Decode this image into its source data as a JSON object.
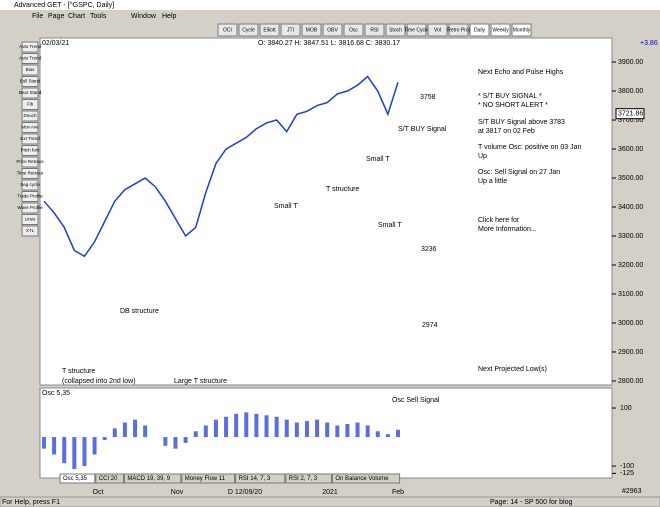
{
  "window": {
    "title": "Advanced GET - [^GSPC, Daily]",
    "menu": [
      "File",
      "Page",
      "Chart",
      "Tools",
      "Window",
      "Help"
    ],
    "toolbar": [
      "OCI",
      "Cycle",
      "Elliott",
      "JTI",
      "MOB",
      "OBV",
      "Osc",
      "RSI",
      "Stoch",
      "Time Cycle",
      "Vol",
      "Retro Proj",
      "Daily",
      "Weekly",
      "Monthly"
    ],
    "side_tools": [
      "Auto Trend",
      "Auto Trend",
      "Bias",
      "Bull Stand",
      "Bear Stand",
      "Fib",
      "Dnuch",
      "Mov Ave",
      "Ext Trend",
      "Pitch fork",
      "Price Retrace",
      "Time Retrace",
      "Seg cycle",
      "Trade Profile",
      "Wave Profile",
      "Lines",
      "XTL"
    ]
  },
  "header": {
    "date": "02/03/21",
    "ohlc": "O: 3840.27  H: 3847.51  L: 3816.68  C: 3830.17",
    "change": "+3.86"
  },
  "price_axis": {
    "ylim": [
      2786,
      3976
    ],
    "yticks": [
      {
        "value": 2800,
        "label": "2800.00"
      },
      {
        "value": 2900,
        "label": "2900.00"
      },
      {
        "value": 3000,
        "label": "3000.00"
      },
      {
        "value": 3100,
        "label": "3100.00"
      },
      {
        "value": 3200,
        "label": "3200.00"
      },
      {
        "value": 3300,
        "label": "3300.00"
      },
      {
        "value": 3400,
        "label": "3400.00"
      },
      {
        "value": 3500,
        "label": "3500.00"
      },
      {
        "value": 3600,
        "label": "3600.00"
      },
      {
        "value": 3700,
        "label": "3700.00"
      },
      {
        "value": 3800,
        "label": "3800.00"
      },
      {
        "value": 3900,
        "label": "3900.00"
      }
    ],
    "last": {
      "value": 3721.86,
      "label": "3721.86"
    }
  },
  "closes": [
    3420,
    3380,
    3330,
    3250,
    3230,
    3280,
    3350,
    3420,
    3460,
    3480,
    3500,
    3470,
    3420,
    3360,
    3300,
    3330,
    3450,
    3550,
    3600,
    3620,
    3640,
    3670,
    3690,
    3700,
    3660,
    3720,
    3730,
    3750,
    3760,
    3790,
    3800,
    3820,
    3850,
    3800,
    3720,
    3830
  ],
  "osc": {
    "name": "Osc 5,35",
    "ylim": [
      -141,
      169
    ],
    "yticks": [
      100,
      -100,
      -125
    ],
    "values": [
      -40,
      -60,
      -90,
      -110,
      -100,
      -60,
      -10,
      30,
      50,
      60,
      40,
      0,
      -30,
      -40,
      -20,
      20,
      40,
      60,
      70,
      80,
      85,
      80,
      75,
      70,
      60,
      50,
      55,
      60,
      50,
      40,
      45,
      50,
      40,
      20,
      10,
      25
    ]
  },
  "dates": [
    "Oct",
    "Nov",
    "D 12/09/20",
    "2021",
    "Feb"
  ],
  "annotations": [
    "3758",
    "S/T BUY Signal",
    "Small T",
    "T structure",
    "Small T",
    "Small T",
    "3236",
    "DB structure",
    "2974",
    "T structure",
    "(collapsed into 2nd low)",
    "Large T structure",
    "Osc Sell Signal"
  ],
  "notes": [
    "Next Echo and Pulse Highs",
    "* S/T BUY SIGNAL *",
    "* NO SHORT ALERT *",
    "S/T BUY Signal above 3783",
    "at 3817 on 02 Feb",
    "T volume Osc: positive on 03 Jan",
    "Up",
    "Osc: Sell Signal on 27 Jan",
    "Up a little",
    "Click here for",
    "More Information...",
    "Next Projected Low(s)"
  ],
  "tabs": [
    "Osc 5,35",
    "CCI 20",
    "MACD 19, 39, 9",
    "Money Flow 11",
    "RSI 14, 7, 3",
    "RSI 2, 7, 3",
    "On Balance Volume"
  ],
  "status": [
    "For Help, press F1",
    "Page: 14 - SP 500 for blog",
    "#2963"
  ]
}
